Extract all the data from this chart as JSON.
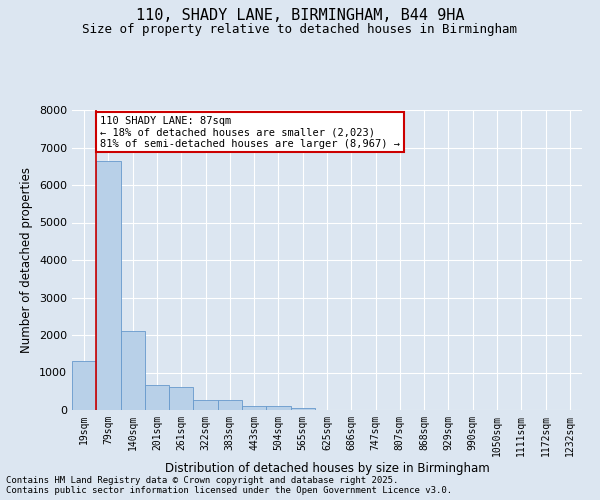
{
  "title_line1": "110, SHADY LANE, BIRMINGHAM, B44 9HA",
  "title_line2": "Size of property relative to detached houses in Birmingham",
  "xlabel": "Distribution of detached houses by size in Birmingham",
  "ylabel": "Number of detached properties",
  "footer_line1": "Contains HM Land Registry data © Crown copyright and database right 2025.",
  "footer_line2": "Contains public sector information licensed under the Open Government Licence v3.0.",
  "annotation_line1": "110 SHADY LANE: 87sqm",
  "annotation_line2": "← 18% of detached houses are smaller (2,023)",
  "annotation_line3": "81% of semi-detached houses are larger (8,967) →",
  "bar_labels": [
    "19sqm",
    "79sqm",
    "140sqm",
    "201sqm",
    "261sqm",
    "322sqm",
    "383sqm",
    "443sqm",
    "504sqm",
    "565sqm",
    "625sqm",
    "686sqm",
    "747sqm",
    "807sqm",
    "868sqm",
    "929sqm",
    "990sqm",
    "1050sqm",
    "1111sqm",
    "1172sqm",
    "1232sqm"
  ],
  "bar_values": [
    1300,
    6650,
    2100,
    660,
    620,
    280,
    260,
    120,
    100,
    50,
    0,
    0,
    0,
    0,
    0,
    0,
    0,
    0,
    0,
    0,
    0
  ],
  "bar_color": "#b8d0e8",
  "bar_edge_color": "#6699cc",
  "vline_color": "#cc0000",
  "annotation_box_color": "#cc0000",
  "background_color": "#dce6f1",
  "plot_bg_color": "#dce6f1",
  "ylim": [
    0,
    8000
  ],
  "yticks": [
    0,
    1000,
    2000,
    3000,
    4000,
    5000,
    6000,
    7000,
    8000
  ],
  "grid_color": "#ffffff",
  "title_fontsize": 11,
  "subtitle_fontsize": 9,
  "tick_fontsize": 7,
  "label_fontsize": 8.5,
  "footer_fontsize": 6.5,
  "annotation_fontsize": 7.5
}
